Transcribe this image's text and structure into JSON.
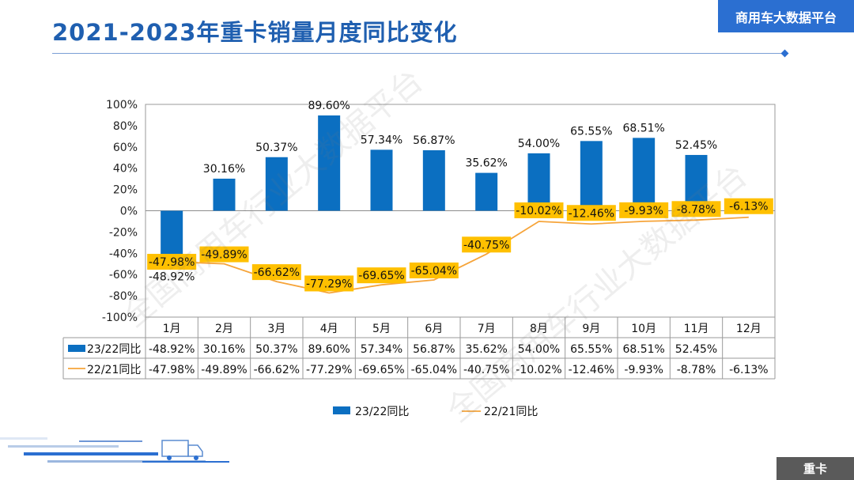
{
  "header": {
    "title": "2021-2023年重卡销量月度同比变化",
    "brand": "商用车大数据平台"
  },
  "footer": {
    "tag": "重卡"
  },
  "watermark": "全国商用车行业大数据平台",
  "colors": {
    "bar": "#0b6fc1",
    "line": "#f6a43a",
    "label_bg": "#ffc000",
    "title": "#1f5fb0"
  },
  "chart_data": {
    "type": "bar",
    "categories": [
      "1月",
      "2月",
      "3月",
      "4月",
      "5月",
      "6月",
      "7月",
      "8月",
      "9月",
      "10月",
      "11月",
      "12月"
    ],
    "series": [
      {
        "name": "23/22同比",
        "type": "bar",
        "values": [
          -48.92,
          30.16,
          50.37,
          89.6,
          57.34,
          56.87,
          35.62,
          54.0,
          65.55,
          68.51,
          52.45,
          null
        ],
        "labels": [
          "-48.92%",
          "30.16%",
          "50.37%",
          "89.60%",
          "57.34%",
          "56.87%",
          "35.62%",
          "54.00%",
          "65.55%",
          "68.51%",
          "52.45%",
          ""
        ]
      },
      {
        "name": "22/21同比",
        "type": "line",
        "values": [
          -47.98,
          -49.89,
          -66.62,
          -77.29,
          -69.65,
          -65.04,
          -40.75,
          -10.02,
          -12.46,
          -9.93,
          -8.78,
          -6.13
        ],
        "labels": [
          "-47.98%",
          "-49.89%",
          "-66.62%",
          "-77.29%",
          "-69.65%",
          "-65.04%",
          "-40.75%",
          "-10.02%",
          "-12.46%",
          "-9.93%",
          "-8.78%",
          "-6.13%"
        ]
      }
    ],
    "yticks": [
      "100%",
      "80%",
      "60%",
      "40%",
      "20%",
      "0%",
      "-20%",
      "-40%",
      "-60%",
      "-80%",
      "-100%"
    ],
    "ylim": [
      -100,
      100
    ],
    "legend": [
      "23/22同比",
      "22/21同比"
    ],
    "legend_position": "bottom"
  }
}
